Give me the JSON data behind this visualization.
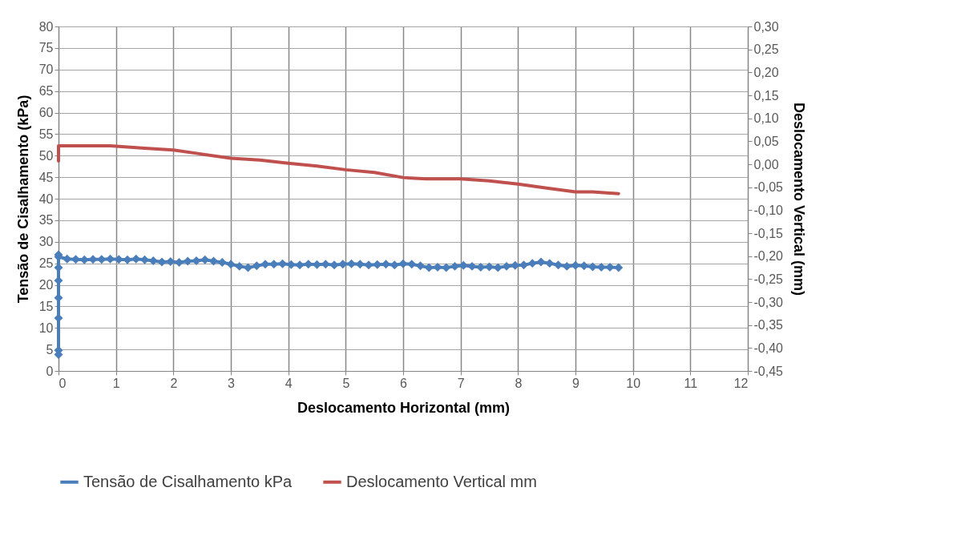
{
  "chart_data": {
    "type": "line",
    "xlabel": "Deslocamento Horizontal (mm)",
    "ylabel": "Tensão de Cisalhamento (kPa)",
    "y2label": "Deslocamento Vertical (mm)",
    "xlim": [
      0,
      12
    ],
    "xticks": [
      0,
      1,
      2,
      3,
      4,
      5,
      6,
      7,
      8,
      9,
      10,
      11,
      12
    ],
    "ylim": [
      0,
      80
    ],
    "yticks": [
      0,
      5,
      10,
      15,
      20,
      25,
      30,
      35,
      40,
      45,
      50,
      55,
      60,
      65,
      70,
      75,
      80
    ],
    "y2lim": [
      -0.45,
      0.3
    ],
    "y2ticks": [
      {
        "value": -0.45,
        "label": "-0,45"
      },
      {
        "value": -0.4,
        "label": "-0,40"
      },
      {
        "value": -0.35,
        "label": "-0,35"
      },
      {
        "value": -0.3,
        "label": "-0,30"
      },
      {
        "value": -0.25,
        "label": "-0,25"
      },
      {
        "value": -0.2,
        "label": "-0,20"
      },
      {
        "value": -0.15,
        "label": "-0,15"
      },
      {
        "value": -0.1,
        "label": "-0,10"
      },
      {
        "value": -0.05,
        "label": "-0,05"
      },
      {
        "value": 0,
        "label": "0,00"
      },
      {
        "value": 0.05,
        "label": "0,05"
      },
      {
        "value": 0.1,
        "label": "0,10"
      },
      {
        "value": 0.15,
        "label": "0,15"
      },
      {
        "value": 0.2,
        "label": "0,20"
      },
      {
        "value": 0.25,
        "label": "0,25"
      },
      {
        "value": 0.3,
        "label": "0,30"
      }
    ],
    "grid": true,
    "legend": "bottom",
    "line_style": "solid",
    "series": [
      {
        "name": "Tensão de Cisalhamento kPa",
        "color": "#4a7ebb",
        "marker": "diamond",
        "x": [
          0,
          0,
          0,
          0,
          0,
          0,
          0,
          0,
          0.15,
          0.3,
          0.45,
          0.6,
          0.75,
          0.9,
          1.05,
          1.2,
          1.35,
          1.5,
          1.65,
          1.8,
          1.95,
          2.1,
          2.25,
          2.4,
          2.55,
          2.7,
          2.85,
          3.0,
          3.15,
          3.3,
          3.45,
          3.6,
          3.75,
          3.9,
          4.05,
          4.2,
          4.35,
          4.5,
          4.65,
          4.8,
          4.95,
          5.1,
          5.25,
          5.4,
          5.55,
          5.7,
          5.85,
          6.0,
          6.15,
          6.3,
          6.45,
          6.6,
          6.75,
          6.9,
          7.05,
          7.2,
          7.35,
          7.5,
          7.65,
          7.8,
          7.95,
          8.1,
          8.25,
          8.4,
          8.55,
          8.7,
          8.85,
          9.0,
          9.15,
          9.3,
          9.45,
          9.6,
          9.75
        ],
        "values": [
          3.8,
          4.8,
          12.3,
          17,
          21,
          24,
          27,
          26.5,
          26.0,
          25.9,
          25.8,
          25.9,
          25.9,
          26.0,
          25.9,
          25.8,
          26.0,
          25.8,
          25.6,
          25.3,
          25.4,
          25.2,
          25.5,
          25.6,
          25.8,
          25.5,
          25.2,
          24.8,
          24.3,
          24.0,
          24.4,
          24.8,
          24.8,
          24.9,
          24.7,
          24.6,
          24.8,
          24.7,
          24.8,
          24.6,
          24.8,
          24.9,
          24.8,
          24.6,
          24.7,
          24.8,
          24.6,
          24.9,
          24.8,
          24.4,
          24.0,
          24.1,
          24.0,
          24.3,
          24.5,
          24.3,
          24.1,
          24.2,
          24.0,
          24.3,
          24.5,
          24.6,
          25.0,
          25.3,
          25.0,
          24.6,
          24.3,
          24.5,
          24.4,
          24.2,
          24.1,
          24.1,
          24.0
        ]
      },
      {
        "name": "Deslocamento Vertical mm",
        "color": "#c0504d",
        "marker": "none",
        "axis": "y2",
        "x": [
          0,
          0,
          0.2,
          0.5,
          0.9,
          1.5,
          2,
          2.5,
          3,
          3.5,
          4,
          4.5,
          5,
          5.5,
          6,
          6.4,
          7,
          7.5,
          8,
          8.5,
          9,
          9.3,
          9.75
        ],
        "values": [
          0.007,
          0.04,
          0.04,
          0.04,
          0.04,
          0.035,
          0.031,
          0.022,
          0.013,
          0.009,
          0.002,
          -0.004,
          -0.012,
          -0.018,
          -0.029,
          -0.032,
          -0.032,
          -0.036,
          -0.043,
          -0.052,
          -0.06,
          -0.06,
          -0.064
        ]
      }
    ]
  }
}
